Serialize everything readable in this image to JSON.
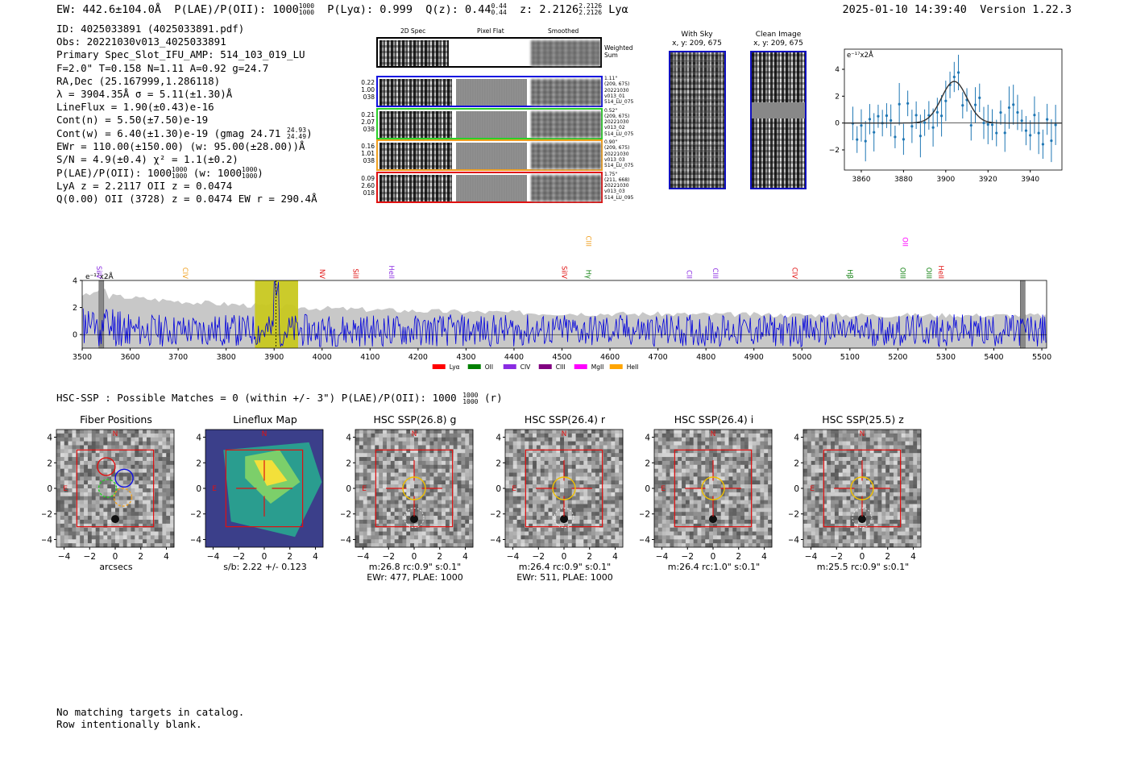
{
  "header": {
    "ew": "EW: 442.6±104.0Å",
    "plae_label": "P(LAE)/P(OII): 1000",
    "plae_up": "1000",
    "plae_dn": "1000",
    "plya": "P(Lyα): 0.999",
    "qz_label": "Q(z): 0.44",
    "qz_up": "0.44",
    "qz_dn": "0.44",
    "z_label": "z: 2.2126",
    "z_up": "2.2126",
    "z_dn": "2.2126",
    "z_line": "Lyα",
    "datetime": "2025-01-10 14:39:40",
    "version": "Version 1.22.3"
  },
  "info": {
    "id": "ID: 4025033891 (4025033891.pdf)",
    "obs": "Obs: 20221030v013_4025033891",
    "primary": "Primary Spec_Slot_IFU_AMP: 514_103_019_LU",
    "params": "F=2.0\"  T=0.158  N=1.11  A=0.92  g=24.7",
    "radec": "RA,Dec (25.167999,1.286118)",
    "lambda": "λ = 3904.35Å   σ = 5.11(±1.30)Å",
    "lineflux": "LineFlux = 1.90(±0.43)e-16",
    "contn": "Cont(n) = 5.50(±7.50)e-19",
    "contw_a": "Cont(w) = 6.40(±1.30)e-19 (gmag 24.71",
    "contw_up": "24.93",
    "contw_dn": "24.49",
    "contw_b": ")",
    "ewr": "EWr = 110.00(±150.00) (w: 95.00(±28.00))Å",
    "sn": "S/N = 4.9(±0.4)  χ² = 1.1(±0.2)",
    "plae_a": "P(LAE)/P(OII): 1000",
    "plae_up": "1000",
    "plae_dn": "1000",
    "plae_b": "(w: 1000",
    "plae_up2": "1000",
    "plae_dn2": "1000",
    "plae_c": ")",
    "lya": "LyA z = 2.2117  OII z = 0.0474",
    "q": "Q(0.00) OII (3728) z = 0.0474  EW r = 290.4Å"
  },
  "cutouts": {
    "col_2d": "2D Spec",
    "col_flat": "Pixel Flat",
    "col_smooth": "Smoothed",
    "weighted": "Weighted Sum",
    "rows": [
      {
        "left": [
          "0.22",
          "1.00",
          "038"
        ],
        "right": [
          "1.11\"",
          "(209, 675)",
          "20221030",
          "v013_01",
          "514_LU_075"
        ],
        "color": "#1010e0"
      },
      {
        "left": [
          "0.21",
          "2.07",
          "038"
        ],
        "right": [
          "0.52\"",
          "(209, 675)",
          "20221030",
          "v013_02",
          "514_LU_075"
        ],
        "color": "#2ad02a"
      },
      {
        "left": [
          "0.16",
          "1.01",
          "038"
        ],
        "right": [
          "0.90\"",
          "(209, 675)",
          "20221030",
          "v013_03",
          "514_LU_075"
        ],
        "color": "#f0a020"
      },
      {
        "left": [
          "0.09",
          "2.60",
          "018"
        ],
        "right": [
          "1.75\"",
          "(211, 668)",
          "20221030",
          "v013_03",
          "514_LU_095"
        ],
        "color": "#e01010"
      }
    ]
  },
  "sky": {
    "with_sky": "With Sky",
    "with_sky_xy": "x, y: 209, 675",
    "clean": "Clean Image",
    "clean_xy": "x, y: 209, 675"
  },
  "zoom_plot": {
    "unit": "e⁻¹⁷x2Å",
    "xticks": [
      "3860",
      "3880",
      "3900",
      "3920",
      "3940"
    ],
    "yticks": [
      "4",
      "2",
      "0",
      "−2"
    ]
  },
  "chart_data": {
    "type": "line",
    "unit": "e⁻¹⁷x2Å",
    "xlim": [
      3500,
      5510
    ],
    "ylim": [
      -1,
      4
    ],
    "xticks": [
      "3500",
      "3600",
      "3700",
      "3800",
      "3900",
      "4000",
      "4100",
      "4200",
      "4300",
      "4400",
      "4500",
      "4600",
      "4700",
      "4800",
      "4900",
      "5000",
      "5100",
      "5200",
      "5300",
      "5400",
      "5500"
    ],
    "yticks": [
      "4",
      "2",
      "0"
    ],
    "line_labels": [
      {
        "text": "SiIV",
        "x": 3525,
        "color": "#8a2be2",
        "row": 1
      },
      {
        "text": "CIV",
        "x": 3705,
        "color": "#f0a020",
        "row": 1
      },
      {
        "text": "NV",
        "x": 3990,
        "color": "#e01010",
        "row": 1
      },
      {
        "text": "SiII",
        "x": 4060,
        "color": "#e01010",
        "row": 1
      },
      {
        "text": "HeII",
        "x": 4135,
        "color": "#8a2be2",
        "row": 1
      },
      {
        "text": "CIII",
        "x": 4545,
        "color": "#f0a020",
        "row": 0
      },
      {
        "text": "SiIV",
        "x": 4495,
        "color": "#e01010",
        "row": 1
      },
      {
        "text": "Hγ",
        "x": 4545,
        "color": "#108010",
        "row": 1
      },
      {
        "text": "CII",
        "x": 4755,
        "color": "#8a2be2",
        "row": 1
      },
      {
        "text": "CIII",
        "x": 4810,
        "color": "#8a2be2",
        "row": 1
      },
      {
        "text": "CIV",
        "x": 4975,
        "color": "#e01010",
        "row": 1
      },
      {
        "text": "Hβ",
        "x": 5090,
        "color": "#108010",
        "row": 1
      },
      {
        "text": "OII",
        "x": 5205,
        "color": "#ff00ff",
        "row": 0
      },
      {
        "text": "OIII",
        "x": 5200,
        "color": "#108010",
        "row": 1
      },
      {
        "text": "OIII",
        "x": 5255,
        "color": "#108010",
        "row": 1
      },
      {
        "text": "HeII",
        "x": 5280,
        "color": "#e01010",
        "row": 1
      }
    ],
    "legend": [
      {
        "name": "Lyα",
        "color": "#ff0000"
      },
      {
        "name": "OII",
        "color": "#008000"
      },
      {
        "name": "CIV",
        "color": "#8a2be2"
      },
      {
        "name": "CIII",
        "color": "#800080"
      },
      {
        "name": "MgII",
        "color": "#ff00ff"
      },
      {
        "name": "HeII",
        "color": "#ffa500"
      }
    ],
    "highlight_range": [
      3860,
      3950
    ],
    "emission_x": 3904
  },
  "hsc": {
    "summary": "HSC-SSP : Possible Matches = 0 (within +/- 3\")  P(LAE)/P(OII): 1000",
    "up": "1000",
    "dn": "1000",
    "suffix": "(r)",
    "panels": [
      {
        "title": "Fiber Positions",
        "cap1": "arcsecs",
        "cap2": ""
      },
      {
        "title": "Lineflux Map",
        "cap1": "s/b: 2.22 +/- 0.123",
        "cap2": ""
      },
      {
        "title": "HSC SSP(26.8) g",
        "cap1": "m:26.8 rc:0.9\"  s:0.1\"",
        "cap2": "EWr: 477, PLAE: 1000"
      },
      {
        "title": "HSC SSP(26.4) r",
        "cap1": "m:26.4 rc:0.9\"  s:0.1\"",
        "cap2": "EWr: 511, PLAE: 1000"
      },
      {
        "title": "HSC SSP(26.4) i",
        "cap1": "m:26.4 rc:1.0\"  s:0.1\"",
        "cap2": ""
      },
      {
        "title": "HSC SSP(25.5) z",
        "cap1": "m:25.5 rc:0.9\"  s:0.1\"",
        "cap2": ""
      }
    ],
    "yticks": [
      "4",
      "2",
      "0",
      "−2",
      "−4"
    ],
    "xticks": [
      "−4",
      "−2",
      "0",
      "2",
      "4"
    ],
    "north": "N",
    "east": "E"
  },
  "footer": {
    "line1": "No matching targets in catalog.",
    "line2": "Row intentionally blank."
  }
}
